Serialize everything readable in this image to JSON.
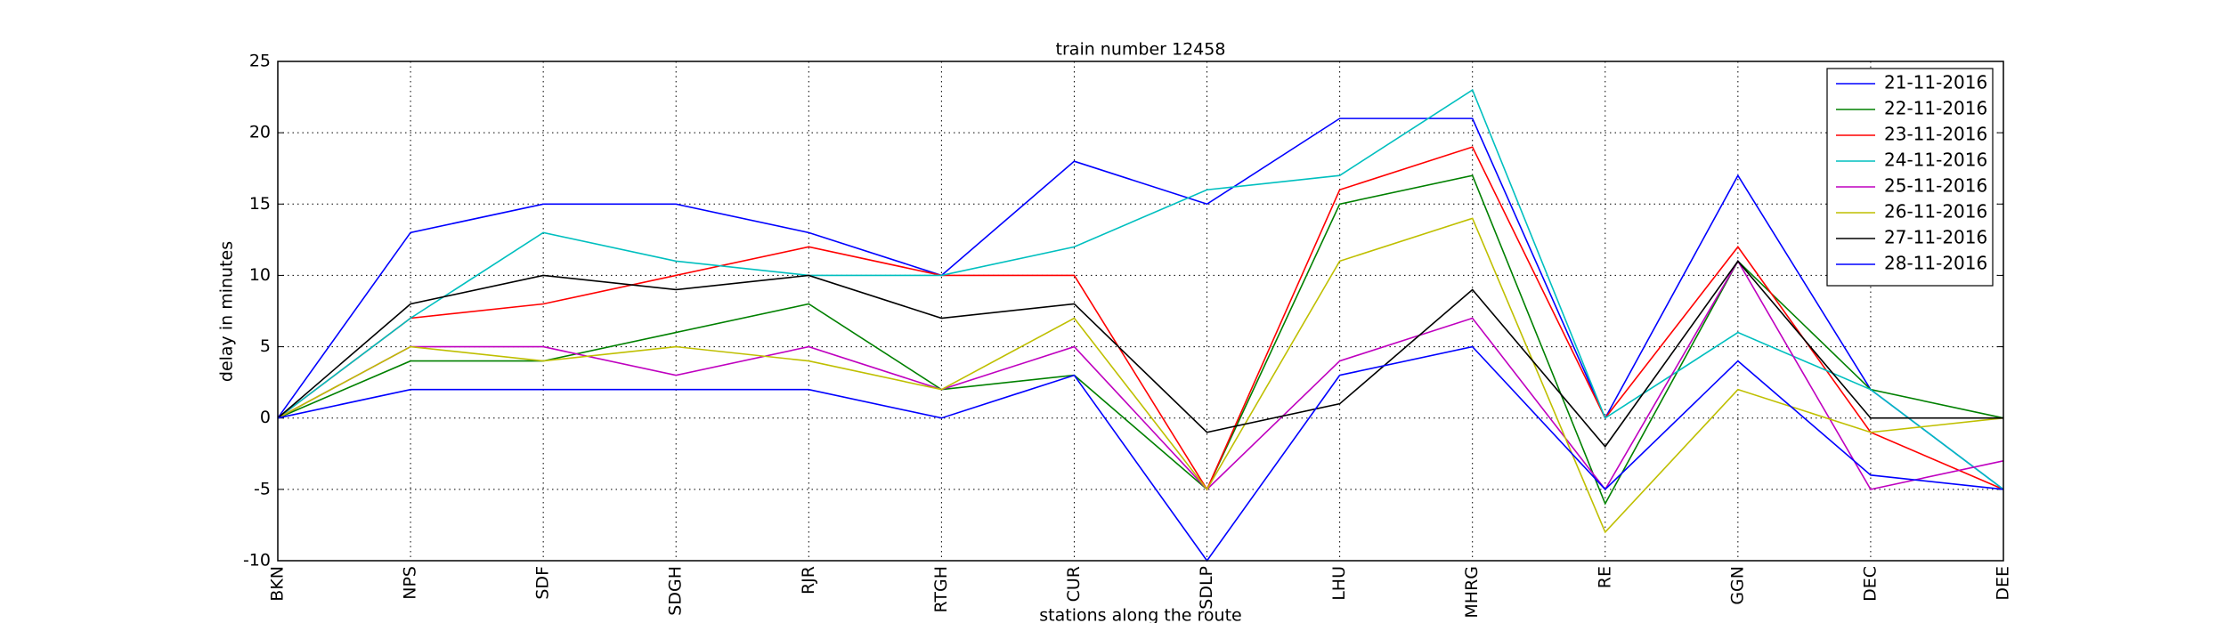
{
  "chart_data": {
    "type": "line",
    "title": "train number 12458",
    "x_label": "stations along the route",
    "y_label": "delay in minutes",
    "categories": [
      "BKN",
      "NPS",
      "SDF",
      "SDGH",
      "RJR",
      "RTGH",
      "CUR",
      "SDLP",
      "LHU",
      "MHRG",
      "RE",
      "GGN",
      "DEC",
      "DEE"
    ],
    "series": [
      {
        "name": "21-11-2016",
        "color": "#0000ff",
        "values": [
          0,
          13,
          15,
          15,
          13,
          10,
          18,
          15,
          21,
          21,
          0,
          17,
          2,
          -5
        ]
      },
      {
        "name": "22-11-2016",
        "color": "#008000",
        "values": [
          0,
          4,
          4,
          6,
          8,
          2,
          3,
          -5,
          15,
          17,
          -6,
          11,
          2,
          0
        ]
      },
      {
        "name": "23-11-2016",
        "color": "#ff0000",
        "values": [
          0,
          7,
          8,
          10,
          12,
          10,
          10,
          -5,
          16,
          19,
          0,
          12,
          -1,
          -5
        ]
      },
      {
        "name": "24-11-2016",
        "color": "#00bfbf",
        "values": [
          0,
          7,
          13,
          11,
          10,
          10,
          12,
          16,
          17,
          23,
          0,
          6,
          2,
          -5
        ]
      },
      {
        "name": "25-11-2016",
        "color": "#bf00bf",
        "values": [
          0,
          5,
          5,
          3,
          5,
          2,
          5,
          -5,
          4,
          7,
          -5,
          11,
          -5,
          -3
        ]
      },
      {
        "name": "26-11-2016",
        "color": "#bfbf00",
        "values": [
          0,
          5,
          4,
          5,
          4,
          2,
          7,
          -5,
          11,
          14,
          -8,
          2,
          -1,
          0
        ]
      },
      {
        "name": "27-11-2016",
        "color": "#000000",
        "values": [
          0,
          8,
          10,
          9,
          10,
          7,
          8,
          -1,
          1,
          9,
          -2,
          11,
          0,
          0
        ]
      },
      {
        "name": "28-11-2016",
        "color": "#0000ff",
        "values": [
          0,
          2,
          2,
          2,
          2,
          0,
          3,
          -10,
          3,
          5,
          -5,
          4,
          -4,
          -5
        ]
      }
    ],
    "ylim": [
      -10,
      25
    ],
    "yticks": [
      -10,
      -5,
      0,
      5,
      10,
      15,
      20,
      25
    ],
    "grid": true,
    "legend": "upper right"
  }
}
